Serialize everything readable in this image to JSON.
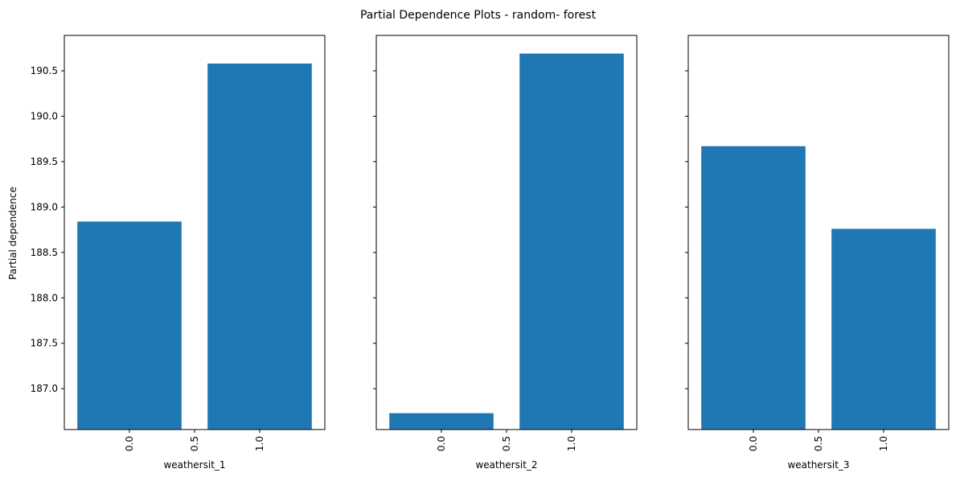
{
  "chart_data": {
    "type": "bar",
    "title": "Partial Dependence Plots - random- forest",
    "ylabel": "Partial dependence",
    "sharey": true,
    "ylim": [
      186.55,
      190.89
    ],
    "yticks": [
      "187.0",
      "187.5",
      "188.0",
      "188.5",
      "189.0",
      "189.5",
      "190.0",
      "190.5"
    ],
    "xlim": [
      -0.5,
      1.5
    ],
    "xticks": [
      "0.0",
      "0.5",
      "1.0"
    ],
    "bar_width": 0.8,
    "bar_color": "#1f77b4",
    "subplots": [
      {
        "xlabel": "weathersit_1",
        "categories": [
          0,
          1
        ],
        "values": [
          188.84,
          190.58
        ]
      },
      {
        "xlabel": "weathersit_2",
        "categories": [
          0,
          1
        ],
        "values": [
          186.73,
          190.69
        ]
      },
      {
        "xlabel": "weathersit_3",
        "categories": [
          0,
          1
        ],
        "values": [
          189.67,
          188.76
        ]
      }
    ]
  }
}
